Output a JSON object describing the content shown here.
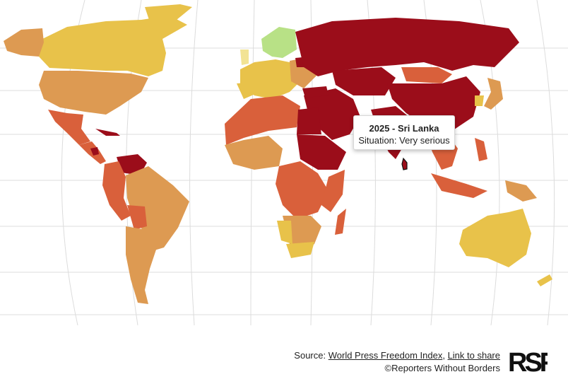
{
  "tooltip": {
    "title": "2025 - Sri Lanka",
    "situation": "Situation: Very serious"
  },
  "footer": {
    "source_prefix": "Source: ",
    "source_link": "World Press Freedom Index",
    "separator": ", ",
    "share_link": "Link to share",
    "copyright": "©Reporters Without Borders"
  },
  "logo": {
    "text": "RSF"
  },
  "colors": {
    "good": "#b8e186",
    "satisfactory": "#f2e394",
    "problematic": "#e8c24a",
    "difficult": "#dd9a52",
    "serious": "#d9603b",
    "very_serious": "#9b0d1a",
    "gridlines": "#d9d9d9"
  }
}
